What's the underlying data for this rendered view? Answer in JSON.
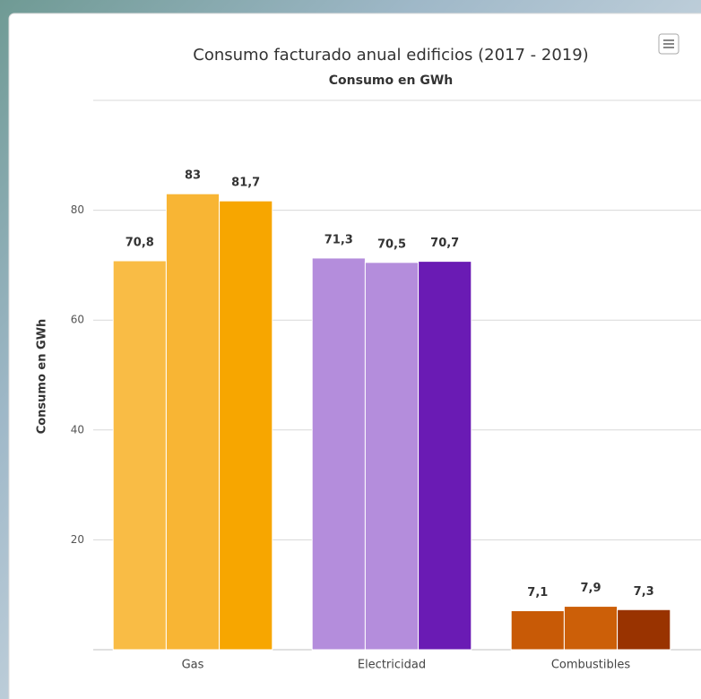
{
  "chart_data": {
    "type": "bar",
    "title": "Consumo facturado anual edificios (2017 - 2019)",
    "subtitle": "Consumo en GWh",
    "y_label": "Consumo en GWh",
    "categories": [
      "Gas",
      "Electricidad",
      "Combustibles"
    ],
    "series": [
      {
        "colors": [
          "#f9bc45",
          "#b48ddc",
          "#c85a06"
        ],
        "values": [
          70.8,
          71.3,
          7.1
        ],
        "value_labels": [
          "70,8",
          "71,3",
          "7,1"
        ]
      },
      {
        "colors": [
          "#f8b534",
          "#b48ddc",
          "#cc5f08"
        ],
        "values": [
          83,
          70.5,
          7.9
        ],
        "value_labels": [
          "83",
          "70,5",
          "7,9"
        ]
      },
      {
        "colors": [
          "#f7a600",
          "#6a1bb4",
          "#993300"
        ],
        "values": [
          81.7,
          70.7,
          7.3
        ],
        "value_labels": [
          "81,7",
          "70,7",
          "7,3"
        ]
      }
    ],
    "ylim": [
      0,
      100
    ],
    "yticks": [
      20,
      40,
      60,
      80
    ],
    "grid": true
  }
}
